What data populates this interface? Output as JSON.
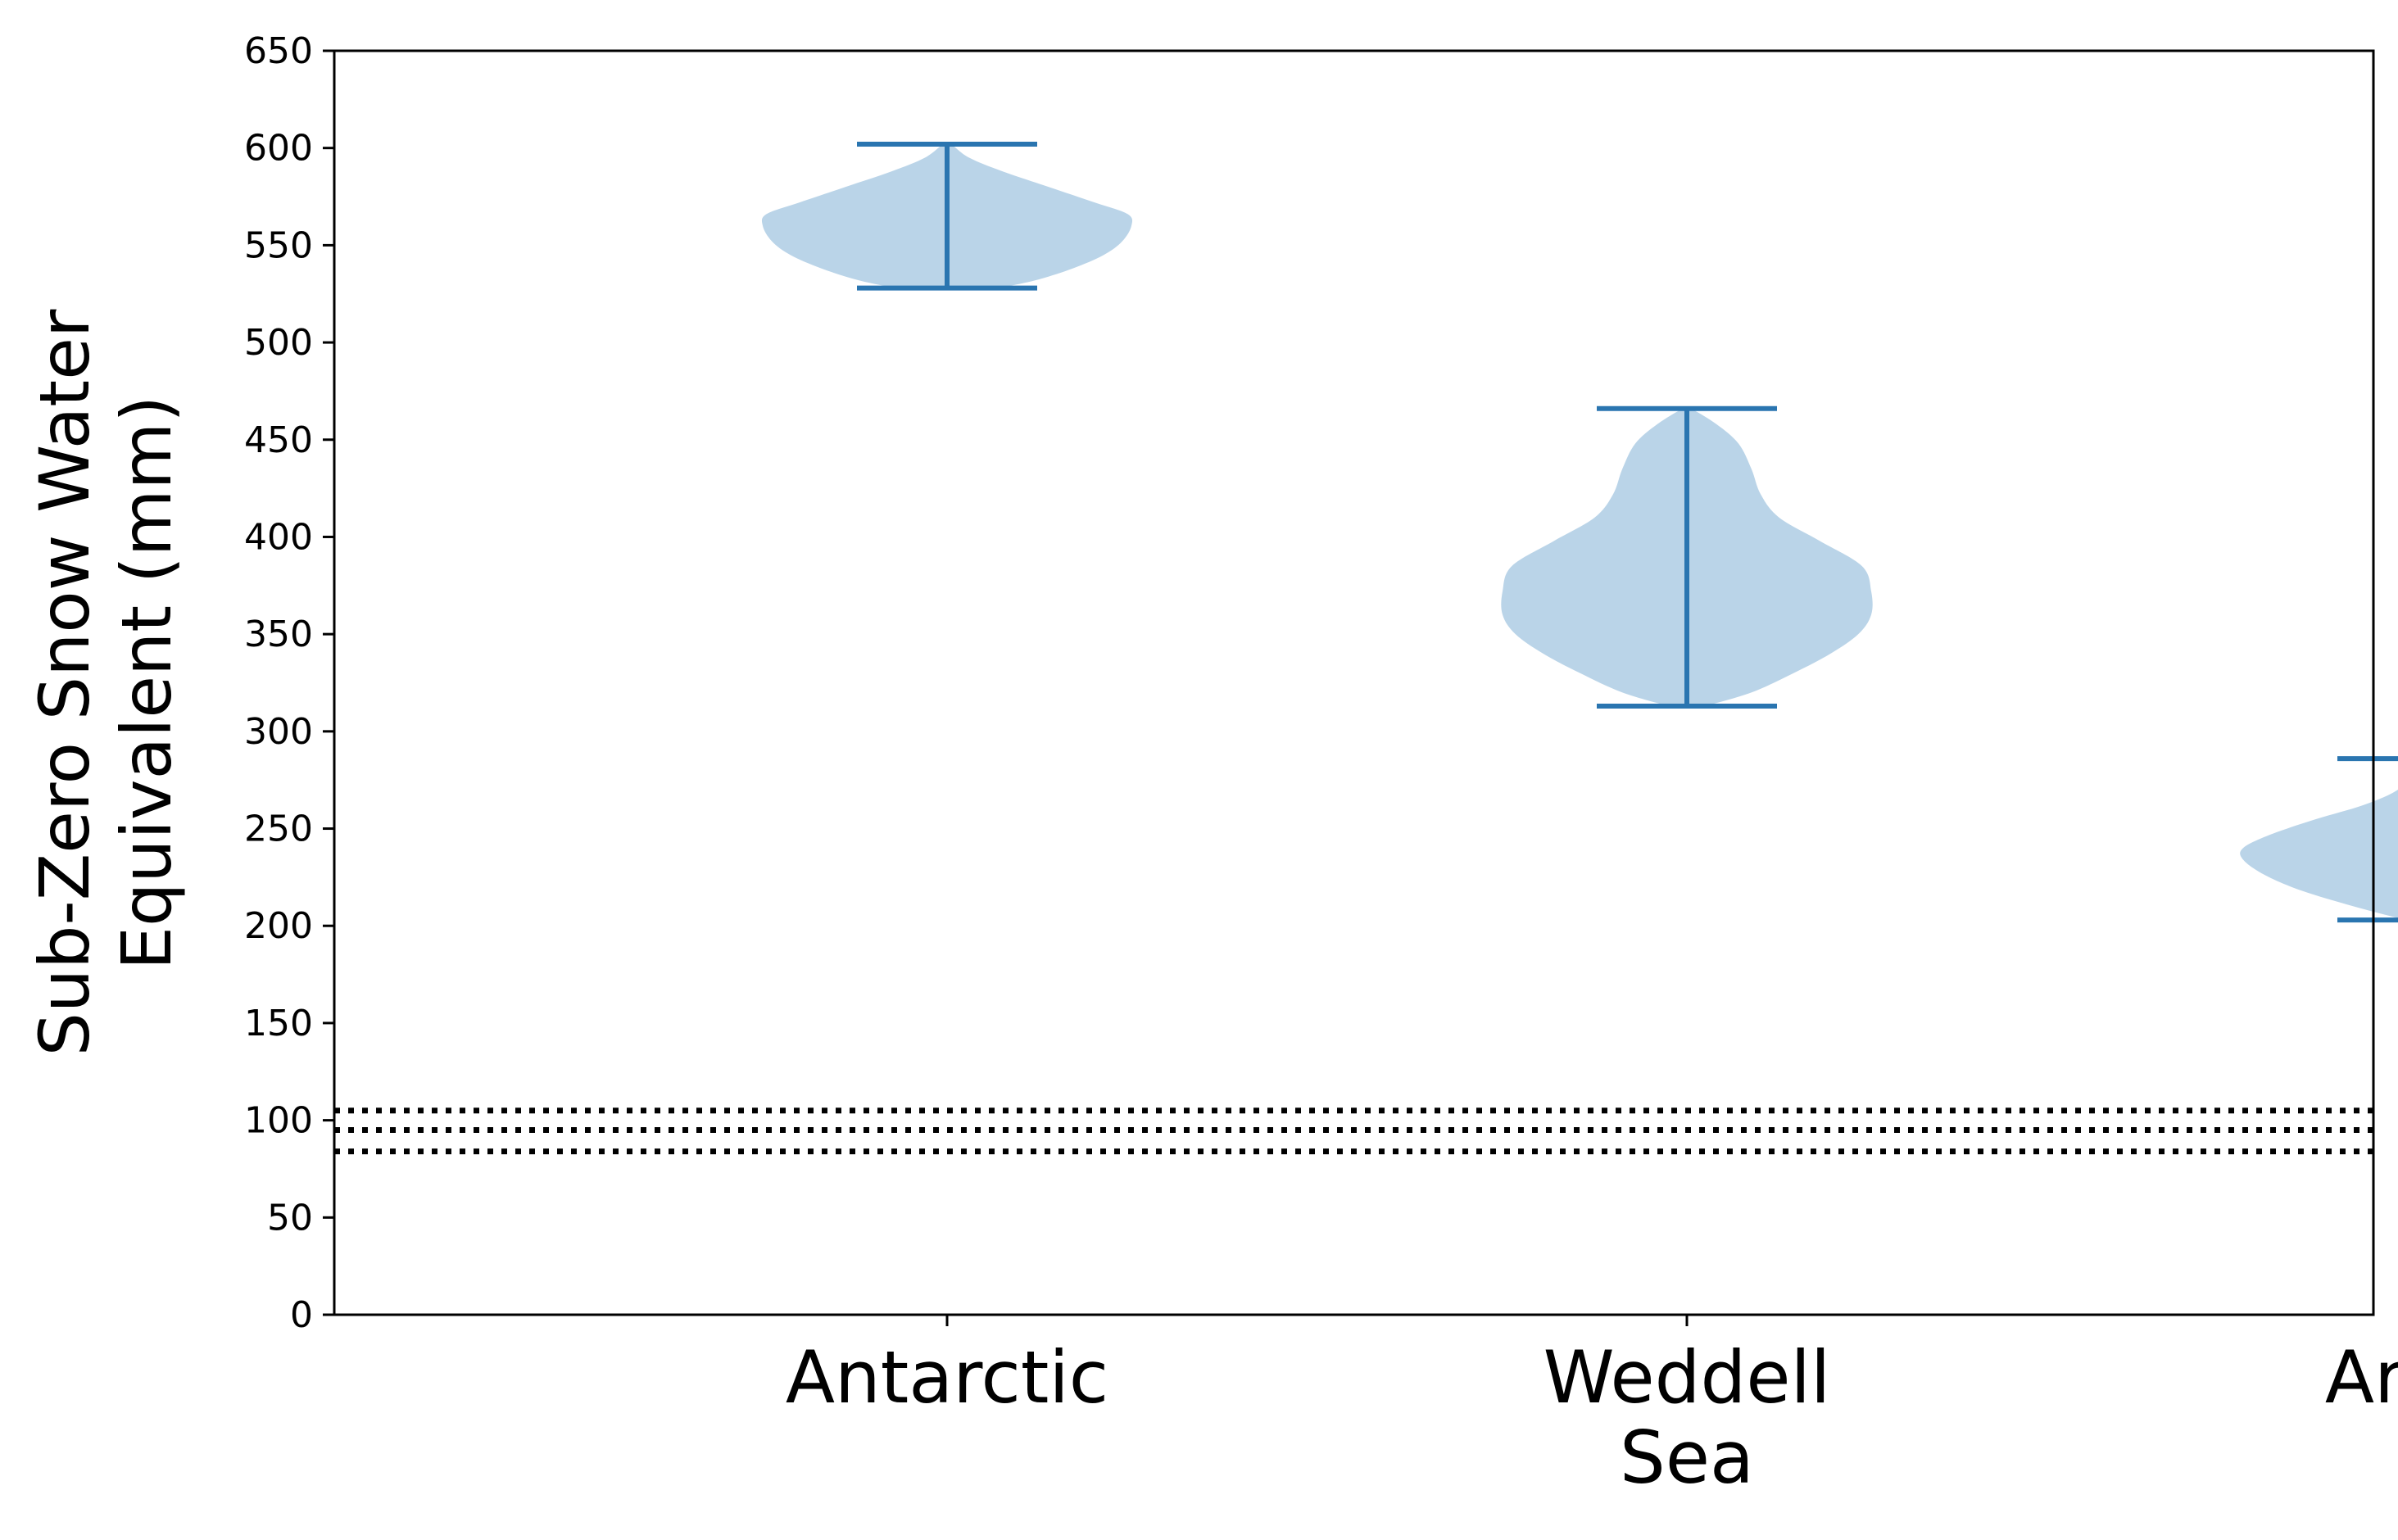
{
  "chart_data": {
    "type": "violin",
    "title": "",
    "xlabel": "",
    "ylabel_lines": [
      "Sub-Zero Snow Water",
      "Equivalent (mm)"
    ],
    "ylim": [
      0,
      650
    ],
    "yticks": [
      0,
      50,
      100,
      150,
      200,
      250,
      300,
      350,
      400,
      450,
      500,
      550,
      600,
      650
    ],
    "categories": [
      {
        "label_lines": [
          "Antarctic"
        ]
      },
      {
        "label_lines": [
          "Weddell",
          "Sea"
        ]
      },
      {
        "label_lines": [
          "Arctic"
        ]
      }
    ],
    "series": [
      {
        "category": "Antarctic",
        "min": 528,
        "max": 602,
        "density": [
          [
            528,
            0.28
          ],
          [
            532,
            0.48
          ],
          [
            538,
            0.68
          ],
          [
            545,
            0.85
          ],
          [
            552,
            0.95
          ],
          [
            560,
            1.0
          ],
          [
            566,
            0.98
          ],
          [
            572,
            0.8
          ],
          [
            580,
            0.55
          ],
          [
            588,
            0.3
          ],
          [
            595,
            0.12
          ],
          [
            602,
            0.02
          ]
        ]
      },
      {
        "category": "Weddell Sea",
        "min": 313,
        "max": 466,
        "density": [
          [
            313,
            0.1
          ],
          [
            320,
            0.35
          ],
          [
            330,
            0.58
          ],
          [
            340,
            0.78
          ],
          [
            350,
            0.93
          ],
          [
            360,
            1.0
          ],
          [
            372,
            1.0
          ],
          [
            385,
            0.95
          ],
          [
            398,
            0.72
          ],
          [
            410,
            0.5
          ],
          [
            422,
            0.4
          ],
          [
            435,
            0.35
          ],
          [
            448,
            0.28
          ],
          [
            458,
            0.16
          ],
          [
            466,
            0.02
          ]
        ]
      },
      {
        "category": "Arctic",
        "min": 203,
        "max": 286,
        "density": [
          [
            203,
            0.12
          ],
          [
            210,
            0.4
          ],
          [
            218,
            0.68
          ],
          [
            226,
            0.88
          ],
          [
            234,
            1.0
          ],
          [
            240,
            1.0
          ],
          [
            247,
            0.85
          ],
          [
            255,
            0.6
          ],
          [
            262,
            0.35
          ],
          [
            270,
            0.16
          ],
          [
            278,
            0.1
          ],
          [
            286,
            0.08
          ]
        ]
      }
    ],
    "reference_lines": [
      84,
      95,
      105
    ],
    "reference_line_style": "dotted",
    "colors": {
      "violin_fill": "#bad4e8",
      "extrema": "#2a75b0",
      "reference": "#000000",
      "axis": "#000000"
    },
    "grid": false,
    "legend": "none"
  }
}
